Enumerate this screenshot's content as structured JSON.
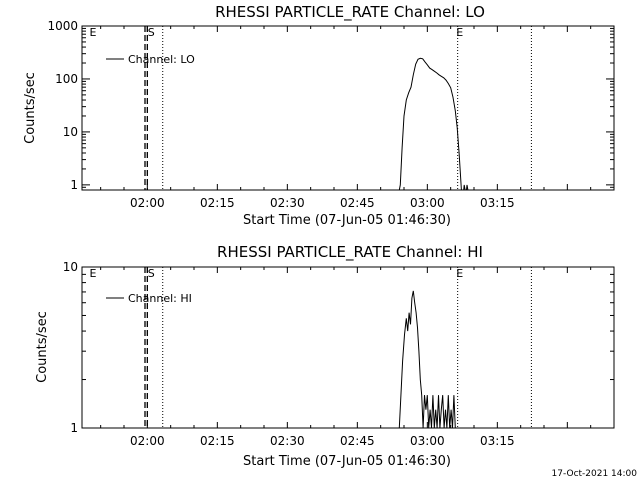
{
  "timestamp": "17-Oct-2021 14:00",
  "chart_data": [
    {
      "type": "line",
      "title": "RHESSI PARTICLE_RATE Channel: LO",
      "xlabel": "Start Time (07-Jun-05 01:46:30)",
      "ylabel": "Counts/sec",
      "y_scale": "log",
      "ylim": [
        0.8,
        1000
      ],
      "xlim_minutes": [
        -14,
        100
      ],
      "x_ticks": [
        {
          "t": 0,
          "label": "02:00"
        },
        {
          "t": 15,
          "label": "02:15"
        },
        {
          "t": 30,
          "label": "02:30"
        },
        {
          "t": 45,
          "label": "02:45"
        },
        {
          "t": 60,
          "label": "03:00"
        },
        {
          "t": 75,
          "label": "03:15"
        }
      ],
      "y_ticks": [
        {
          "v": 1,
          "label": "1"
        },
        {
          "v": 10,
          "label": "10"
        },
        {
          "v": 100,
          "label": "100"
        },
        {
          "v": 1000,
          "label": "1000"
        }
      ],
      "legend": {
        "label": "Channel: LO",
        "placement": "top-left"
      },
      "annotations": [
        {
          "text": "E",
          "t": -12.4
        },
        {
          "text": "S",
          "t": 0.1
        },
        {
          "text": "E",
          "t": 66.2
        }
      ],
      "vlines_dashed": [
        -0.5,
        0.0
      ],
      "vlines_dotted": [
        3.3,
        66.5,
        82.3
      ],
      "series": [
        {
          "name": "Channel: LO",
          "points": [
            [
              54.0,
              0.8
            ],
            [
              54.2,
              1.0
            ],
            [
              54.6,
              5
            ],
            [
              55.0,
              20
            ],
            [
              55.5,
              40
            ],
            [
              56.0,
              55
            ],
            [
              56.5,
              70
            ],
            [
              57.0,
              120
            ],
            [
              57.5,
              190
            ],
            [
              58.0,
              235
            ],
            [
              58.5,
              245
            ],
            [
              59.0,
              240
            ],
            [
              59.5,
              210
            ],
            [
              60.0,
              185
            ],
            [
              60.5,
              160
            ],
            [
              61.0,
              150
            ],
            [
              61.5,
              140
            ],
            [
              62.0,
              130
            ],
            [
              62.5,
              120
            ],
            [
              63.0,
              112
            ],
            [
              63.5,
              105
            ],
            [
              64.0,
              95
            ],
            [
              64.5,
              82
            ],
            [
              65.0,
              68
            ],
            [
              65.5,
              45
            ],
            [
              66.0,
              25
            ],
            [
              66.4,
              12
            ],
            [
              66.8,
              4
            ],
            [
              67.1,
              1.5
            ],
            [
              67.3,
              0.8
            ]
          ],
          "tail_points": [
            [
              67.8,
              0.8
            ],
            [
              67.9,
              1.0
            ],
            [
              68.1,
              0.8
            ],
            [
              68.4,
              0.8
            ],
            [
              68.5,
              1.0
            ],
            [
              68.7,
              0.8
            ]
          ]
        }
      ]
    },
    {
      "type": "line",
      "title": "RHESSI PARTICLE_RATE Channel: HI",
      "xlabel": "Start Time (07-Jun-05 01:46:30)",
      "ylabel": "Counts/sec",
      "y_scale": "log",
      "ylim": [
        1,
        10
      ],
      "xlim_minutes": [
        -14,
        100
      ],
      "x_ticks": [
        {
          "t": 0,
          "label": "02:00"
        },
        {
          "t": 15,
          "label": "02:15"
        },
        {
          "t": 30,
          "label": "02:30"
        },
        {
          "t": 45,
          "label": "02:45"
        },
        {
          "t": 60,
          "label": "03:00"
        },
        {
          "t": 75,
          "label": "03:15"
        }
      ],
      "y_ticks": [
        {
          "v": 1,
          "label": "1"
        },
        {
          "v": 10,
          "label": "10"
        }
      ],
      "legend": {
        "label": "Channel: HI",
        "placement": "top-left"
      },
      "annotations": [
        {
          "text": "E",
          "t": -12.4
        },
        {
          "text": "S",
          "t": 0.1
        },
        {
          "text": "E",
          "t": 66.2
        }
      ],
      "vlines_dashed": [
        -0.5,
        0.0
      ],
      "vlines_dotted": [
        3.3,
        66.5,
        82.3
      ],
      "series": [
        {
          "name": "Channel: HI",
          "points": [
            [
              54.0,
              1.0
            ],
            [
              54.3,
              1.5
            ],
            [
              54.7,
              2.6
            ],
            [
              55.1,
              3.8
            ],
            [
              55.5,
              4.8
            ],
            [
              55.8,
              4.0
            ],
            [
              56.1,
              5.2
            ],
            [
              56.4,
              4.4
            ],
            [
              56.7,
              6.4
            ],
            [
              57.0,
              7.1
            ],
            [
              57.3,
              6.0
            ],
            [
              57.6,
              5.2
            ],
            [
              57.9,
              4.2
            ],
            [
              58.2,
              3.0
            ],
            [
              58.5,
              2.0
            ],
            [
              58.8,
              1.6
            ],
            [
              59.1,
              1.0
            ],
            [
              59.4,
              1.6
            ],
            [
              59.7,
              1.3
            ],
            [
              60.0,
              1.6
            ],
            [
              60.3,
              1.0
            ],
            [
              60.6,
              1.3
            ],
            [
              60.9,
              1.0
            ],
            [
              61.2,
              1.6
            ],
            [
              61.5,
              1.0
            ],
            [
              61.8,
              1.3
            ],
            [
              62.1,
              1.0
            ],
            [
              62.4,
              1.6
            ],
            [
              62.7,
              1.0
            ],
            [
              63.0,
              1.3
            ],
            [
              63.3,
              1.6
            ],
            [
              63.6,
              1.0
            ],
            [
              63.9,
              1.3
            ],
            [
              64.2,
              1.0
            ],
            [
              64.5,
              1.6
            ],
            [
              64.8,
              1.0
            ],
            [
              65.1,
              1.3
            ],
            [
              65.4,
              1.0
            ],
            [
              65.7,
              1.6
            ],
            [
              66.0,
              1.0
            ],
            [
              66.3,
              1.0
            ]
          ]
        }
      ]
    }
  ]
}
